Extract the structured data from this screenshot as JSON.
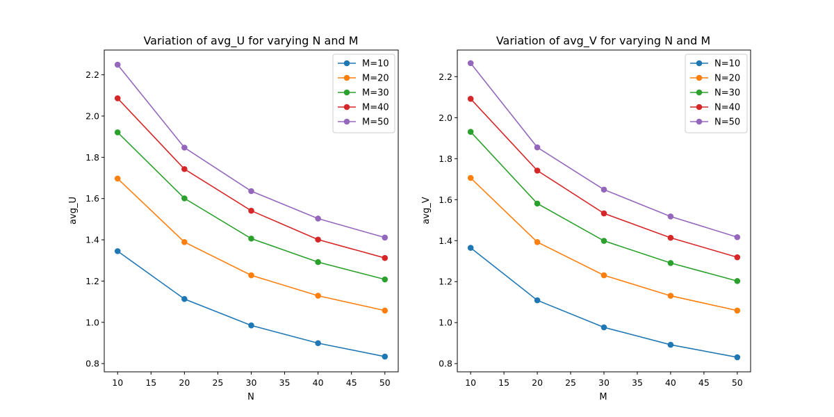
{
  "chart_data": [
    {
      "type": "line",
      "title": "Variation of avg_U for varying N and M",
      "xlabel": "N",
      "ylabel": "avg_U",
      "x": [
        10,
        20,
        30,
        40,
        50
      ],
      "xlim": [
        8,
        52
      ],
      "ylim": [
        0.76,
        2.32
      ],
      "xticks": [
        10,
        15,
        20,
        25,
        30,
        35,
        40,
        45,
        50
      ],
      "xtick_labels": [
        "10",
        "15",
        "20",
        "25",
        "30",
        "35",
        "40",
        "45",
        "50"
      ],
      "yticks": [
        0.8,
        1.0,
        1.2,
        1.4,
        1.6,
        1.8,
        2.0,
        2.2
      ],
      "ytick_labels": [
        "0.8",
        "1.0",
        "1.2",
        "1.4",
        "1.6",
        "1.8",
        "2.0",
        "2.2"
      ],
      "grid": false,
      "legend_position": "top-right",
      "series": [
        {
          "name": "M=10",
          "color": "#1f77b4",
          "values": [
            1.345,
            1.113,
            0.985,
            0.899,
            0.834
          ]
        },
        {
          "name": "M=20",
          "color": "#ff7f0e",
          "values": [
            1.697,
            1.389,
            1.228,
            1.129,
            1.057
          ]
        },
        {
          "name": "M=30",
          "color": "#2ca02c",
          "values": [
            1.921,
            1.601,
            1.406,
            1.292,
            1.208
          ]
        },
        {
          "name": "M=40",
          "color": "#d62728",
          "values": [
            2.086,
            1.743,
            1.541,
            1.401,
            1.312
          ]
        },
        {
          "name": "M=50",
          "color": "#9467bd",
          "values": [
            2.249,
            1.847,
            1.636,
            1.503,
            1.411
          ]
        }
      ]
    },
    {
      "type": "line",
      "title": "Variation of avg_V for varying N and M",
      "xlabel": "M",
      "ylabel": "avg_V",
      "x": [
        10,
        20,
        30,
        40,
        50
      ],
      "xlim": [
        8,
        52
      ],
      "ylim": [
        0.76,
        2.33
      ],
      "xticks": [
        10,
        15,
        20,
        25,
        30,
        35,
        40,
        45,
        50
      ],
      "xtick_labels": [
        "10",
        "15",
        "20",
        "25",
        "30",
        "35",
        "40",
        "45",
        "50"
      ],
      "yticks": [
        0.8,
        1.0,
        1.2,
        1.4,
        1.6,
        1.8,
        2.0,
        2.2
      ],
      "ytick_labels": [
        "0.8",
        "1.0",
        "1.2",
        "1.4",
        "1.6",
        "1.8",
        "2.0",
        "2.2"
      ],
      "grid": false,
      "legend_position": "top-right",
      "series": [
        {
          "name": "N=10",
          "color": "#1f77b4",
          "values": [
            1.365,
            1.109,
            0.977,
            0.892,
            0.831
          ]
        },
        {
          "name": "N=20",
          "color": "#ff7f0e",
          "values": [
            1.706,
            1.393,
            1.231,
            1.131,
            1.059
          ]
        },
        {
          "name": "N=30",
          "color": "#2ca02c",
          "values": [
            1.931,
            1.581,
            1.399,
            1.291,
            1.203
          ]
        },
        {
          "name": "N=40",
          "color": "#d62728",
          "values": [
            2.092,
            1.742,
            1.533,
            1.414,
            1.319
          ]
        },
        {
          "name": "N=50",
          "color": "#9467bd",
          "values": [
            2.266,
            1.855,
            1.649,
            1.518,
            1.417
          ]
        }
      ]
    }
  ]
}
